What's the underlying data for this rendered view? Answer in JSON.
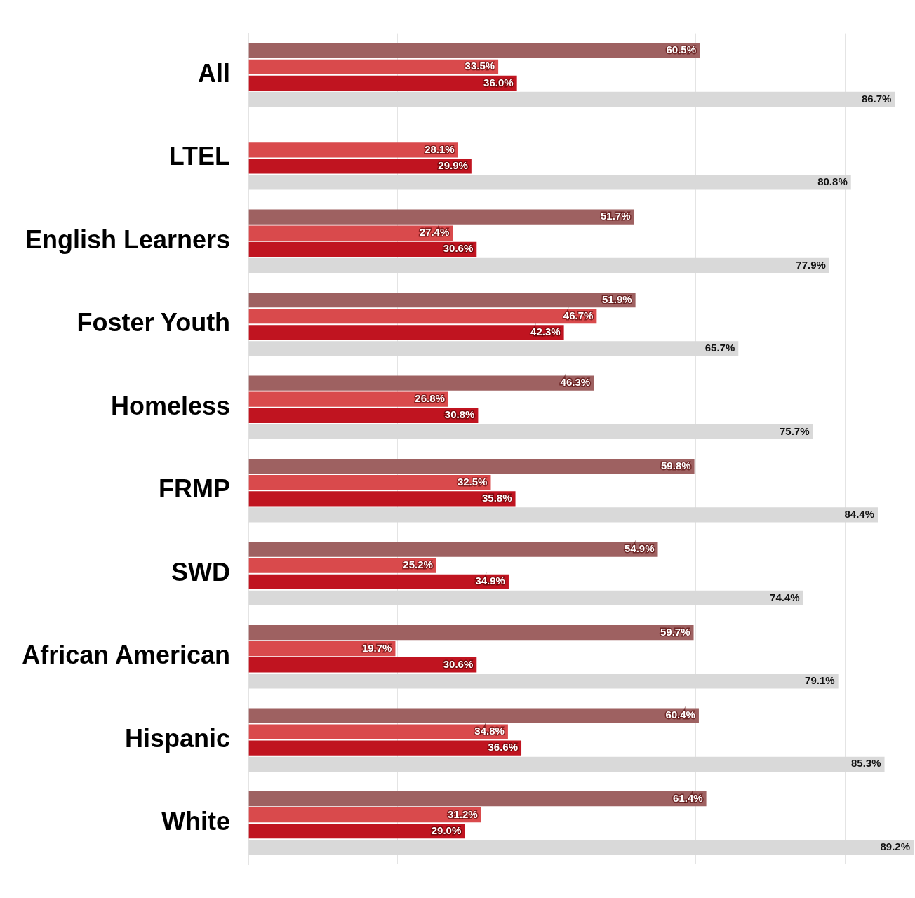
{
  "chart_data": {
    "type": "bar",
    "orientation": "horizontal",
    "categories": [
      "All",
      "LTEL",
      "English Learners",
      "Foster Youth",
      "Homeless",
      "FRMP",
      "SWD",
      "African American",
      "Hispanic",
      "White"
    ],
    "series": [
      {
        "color": "#9e6161",
        "values": [
          60.5,
          null,
          51.7,
          51.9,
          46.3,
          59.8,
          54.9,
          59.7,
          60.4,
          61.4
        ],
        "value_labels": [
          "60.5%",
          null,
          "51.7%",
          "51.9%",
          "46.3%",
          "59.8%",
          "54.9%",
          "59.7%",
          "60.4%",
          "61.4%"
        ]
      },
      {
        "color": "#d94a4c",
        "values": [
          33.5,
          28.1,
          27.4,
          46.7,
          26.8,
          32.5,
          25.2,
          19.7,
          34.8,
          31.2
        ],
        "value_labels": [
          "33.5%",
          "28.1%",
          "27.4%",
          "46.7%",
          "26.8%",
          "32.5%",
          "25.2%",
          "19.7%",
          "34.8%",
          "31.2%"
        ]
      },
      {
        "color": "#c01420",
        "values": [
          36.0,
          29.9,
          30.6,
          42.3,
          30.8,
          35.8,
          34.9,
          30.6,
          36.6,
          29.0
        ],
        "value_labels": [
          "36.0%",
          "29.9%",
          "30.6%",
          "42.3%",
          "30.8%",
          "35.8%",
          "34.9%",
          "30.6%",
          "36.6%",
          "29.0%"
        ]
      },
      {
        "color": "#d9d9d9",
        "values": [
          86.7,
          80.8,
          77.9,
          65.7,
          75.7,
          84.4,
          74.4,
          79.1,
          85.3,
          89.2
        ],
        "value_labels": [
          "86.7%",
          "80.8%",
          "77.9%",
          "65.7%",
          "75.7%",
          "84.4%",
          "74.4%",
          "79.1%",
          "85.3%",
          "89.2%"
        ]
      }
    ],
    "xlim": [
      0,
      89.2
    ],
    "xticks": [
      {
        "value": 0,
        "label": null
      },
      {
        "value": 20,
        "label": null
      },
      {
        "value": 40,
        "label": null
      },
      {
        "value": 60,
        "label": null
      },
      {
        "value": 80,
        "label": null
      }
    ],
    "grid": "x",
    "tick_labels": "y",
    "legend": false
  }
}
